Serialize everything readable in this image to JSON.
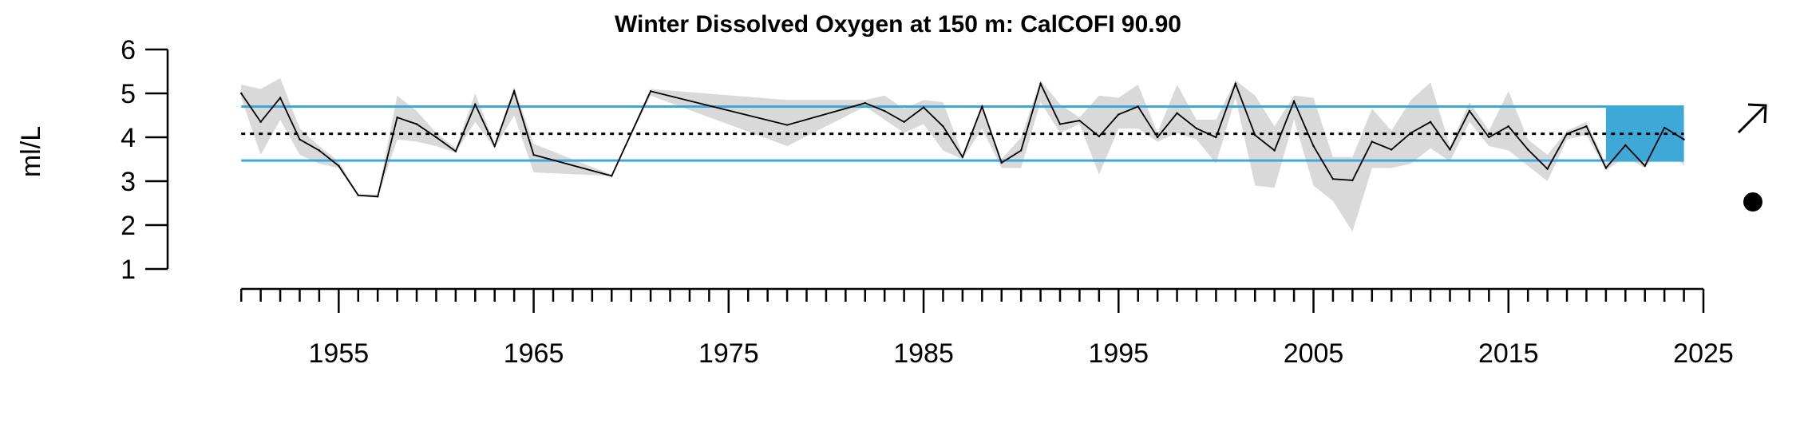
{
  "chart_data": {
    "type": "line",
    "title": "Winter Dissolved Oxygen at 150 m: CalCOFI 90.90",
    "xlabel": "",
    "ylabel": "ml/L",
    "xlim": [
      1949.5,
      2025
    ],
    "ylim": [
      1,
      6
    ],
    "x_ticks": [
      1955,
      1965,
      1975,
      1985,
      1995,
      2005,
      2015,
      2025
    ],
    "y_ticks": [
      1,
      2,
      3,
      4,
      5,
      6
    ],
    "grid": false,
    "reference_lines": {
      "mean": 4.08,
      "upper_sd": 4.7,
      "lower_sd": 3.47
    },
    "recent_window": {
      "x_start": 2020,
      "x_end": 2024,
      "y_low": 3.47,
      "y_high": 4.7
    },
    "trend_indicators": {
      "trend": "increasing-arrow-icon",
      "mean_status": "filled-circle-icon"
    },
    "colors": {
      "line": "#000000",
      "band": "#d9d9d9",
      "sd_lines": "#3ea9d6",
      "recent": "#3ea9d6",
      "mean": "#000000"
    },
    "series": [
      {
        "x": [
          1950,
          1951,
          1952,
          1953,
          1954,
          1955,
          1956,
          1957,
          1958,
          1959,
          1960,
          1961,
          1962,
          1963,
          1964,
          1965,
          1969,
          1971,
          1978,
          1982,
          1983,
          1984,
          1985,
          1986,
          1987,
          1988,
          1989,
          1990,
          1991,
          1992,
          1993,
          1994,
          1995,
          1996,
          1997,
          1998,
          1999,
          2000,
          2001,
          2002,
          2003,
          2004,
          2005,
          2006,
          2007,
          2008,
          2009,
          2010,
          2011,
          2012,
          2013,
          2014,
          2015,
          2016,
          2017,
          2018,
          2019,
          2020,
          2021,
          2022,
          2023,
          2024
        ],
        "values": [
          5.0,
          4.35,
          4.9,
          3.95,
          3.7,
          3.35,
          2.68,
          2.65,
          4.45,
          4.3,
          4.0,
          3.68,
          4.75,
          3.8,
          5.05,
          3.6,
          3.12,
          5.05,
          4.28,
          4.78,
          4.6,
          4.35,
          4.68,
          4.25,
          3.55,
          4.7,
          3.42,
          3.7,
          5.22,
          4.3,
          4.38,
          4.02,
          4.52,
          4.7,
          4.0,
          4.55,
          4.2,
          4.0,
          5.22,
          4.05,
          3.7,
          4.82,
          3.8,
          3.05,
          3.02,
          3.9,
          3.72,
          4.1,
          4.35,
          3.72,
          4.6,
          4.0,
          4.25,
          3.72,
          3.28,
          4.08,
          4.25,
          3.3,
          3.82,
          3.35,
          4.22,
          3.95
        ],
        "lower": [
          4.9,
          3.6,
          4.4,
          3.6,
          3.4,
          3.3,
          2.65,
          2.62,
          3.95,
          3.9,
          3.8,
          3.65,
          4.35,
          3.75,
          4.5,
          3.2,
          3.12,
          4.95,
          3.8,
          4.7,
          4.4,
          4.1,
          4.3,
          3.7,
          3.5,
          4.2,
          3.3,
          3.3,
          4.8,
          4.1,
          4.3,
          3.15,
          4.2,
          4.2,
          3.9,
          4.1,
          3.95,
          3.4,
          4.9,
          2.9,
          2.85,
          4.4,
          2.9,
          2.55,
          1.85,
          3.3,
          3.3,
          3.4,
          3.75,
          3.45,
          4.35,
          3.8,
          3.7,
          3.35,
          3.0,
          3.95,
          4.05,
          3.25,
          3.55,
          3.3,
          3.8,
          3.35
        ],
        "upper": [
          5.2,
          5.1,
          5.35,
          4.2,
          3.8,
          3.45,
          2.7,
          2.7,
          4.95,
          4.6,
          4.1,
          3.75,
          5.0,
          3.85,
          5.15,
          3.85,
          3.15,
          5.1,
          4.85,
          4.85,
          4.95,
          4.65,
          4.85,
          4.8,
          3.6,
          4.75,
          3.5,
          4.0,
          5.3,
          4.75,
          4.45,
          4.95,
          4.9,
          5.2,
          4.1,
          5.2,
          4.4,
          4.4,
          5.3,
          4.95,
          4.25,
          4.95,
          4.9,
          3.55,
          3.55,
          4.65,
          4.15,
          4.85,
          5.25,
          3.8,
          4.8,
          4.15,
          5.05,
          3.95,
          3.6,
          4.15,
          4.35,
          3.4,
          4.05,
          3.45,
          4.45,
          4.05
        ]
      }
    ]
  }
}
